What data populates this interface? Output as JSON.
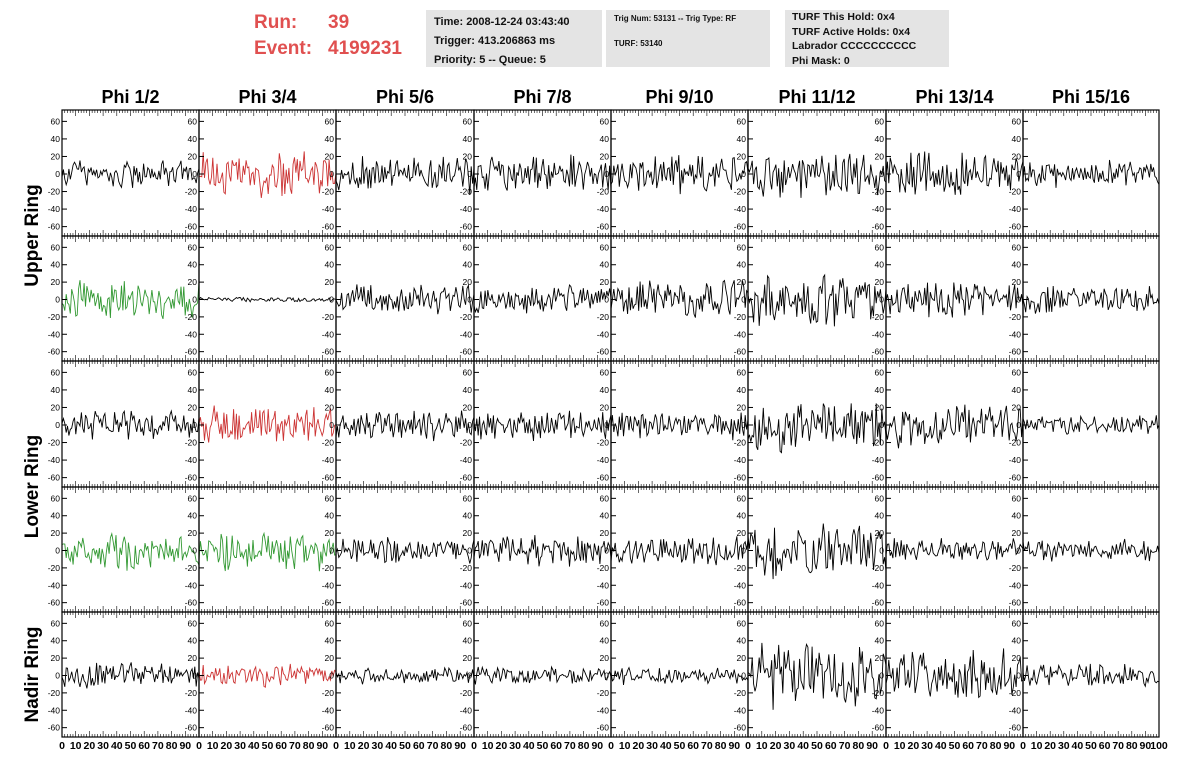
{
  "header": {
    "run_label": "Run:",
    "run_value": "39",
    "event_label": "Event:",
    "event_value": "4199231",
    "info1": [
      "Time: 2008-12-24 03:43:40",
      "Trigger: 413.206863 ms",
      "Priority: 5 -- Queue: 5"
    ],
    "info2": [
      "Trig Num: 53131 -- Trig Type: RF",
      "TURF: 53140"
    ],
    "info3": [
      "TURF This Hold: 0x4",
      "TURF Active Holds: 0x4",
      "Labrador CCCCCCCCCC",
      "Phi Mask: 0"
    ]
  },
  "colors": {
    "trace": "#000000",
    "red": "#cc3333",
    "green": "#339933",
    "header_red": "#e05050",
    "panel_bg": "#e4e4e4"
  },
  "chart_data": {
    "type": "line",
    "columns": [
      "Phi 1/2",
      "Phi 3/4",
      "Phi 5/6",
      "Phi 7/8",
      "Phi 9/10",
      "Phi 11/12",
      "Phi 13/14",
      "Phi 15/16"
    ],
    "row_groups": [
      {
        "label": "Upper Ring",
        "rows": [
          0,
          1
        ]
      },
      {
        "label": "Lower Ring",
        "rows": [
          2,
          3
        ]
      },
      {
        "label": "Nadir Ring",
        "rows": [
          4
        ]
      }
    ],
    "xlim": [
      0,
      100
    ],
    "x_tick_labels": [
      "0",
      "10",
      "20",
      "30",
      "40",
      "50",
      "60",
      "70",
      "80",
      "90",
      "100"
    ],
    "ylim": [
      -65,
      65
    ],
    "y_tick_labels": [
      "-60",
      "-40",
      "-20",
      "0",
      "20",
      "40",
      "60"
    ],
    "y_ticks": [
      -60,
      -40,
      -20,
      0,
      20,
      40,
      60
    ],
    "trace_color_grid": [
      [
        "black",
        "red",
        "black",
        "black",
        "black",
        "black",
        "black",
        "black"
      ],
      [
        "green",
        "black",
        "black",
        "black",
        "black",
        "black",
        "black",
        "black"
      ],
      [
        "black",
        "red",
        "black",
        "black",
        "black",
        "black",
        "black",
        "black"
      ],
      [
        "green",
        "green",
        "black",
        "black",
        "black",
        "black",
        "black",
        "black"
      ],
      [
        "black",
        "red",
        "black",
        "black",
        "black",
        "black",
        "black",
        "black"
      ]
    ],
    "approx_amplitude_grid": [
      [
        20,
        30,
        25,
        25,
        25,
        30,
        30,
        18
      ],
      [
        25,
        3,
        20,
        18,
        25,
        35,
        28,
        18
      ],
      [
        20,
        25,
        20,
        20,
        18,
        35,
        30,
        12
      ],
      [
        25,
        25,
        18,
        20,
        20,
        35,
        15,
        15
      ],
      [
        18,
        15,
        12,
        12,
        12,
        40,
        35,
        15
      ]
    ],
    "samples_per_trace": 100
  }
}
